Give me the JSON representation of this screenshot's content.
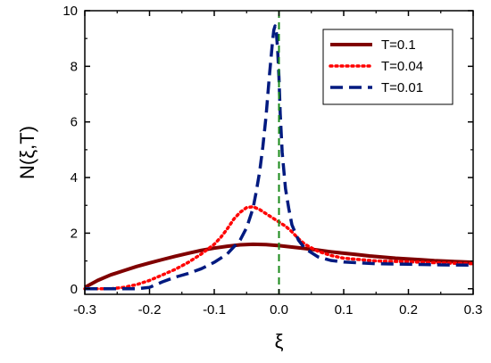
{
  "chart_data": {
    "type": "line",
    "title": "",
    "xlabel": "ξ",
    "ylabel": "N(ξ,T)",
    "xlim": [
      -0.3,
      0.3
    ],
    "ylim": [
      -0.2,
      10
    ],
    "xticks": [
      -0.3,
      -0.2,
      -0.1,
      0.0,
      0.1,
      0.2,
      0.3
    ],
    "xtick_labels": [
      "-0.3",
      "-0.2",
      "-0.1",
      "0.0",
      "0.1",
      "0.2",
      "0.3"
    ],
    "yticks": [
      0,
      2,
      4,
      6,
      8,
      10
    ],
    "ytick_labels": [
      "0",
      "2",
      "4",
      "6",
      "8",
      "10"
    ],
    "grid": false,
    "legend_position": "top-right",
    "vertical_reference_line": {
      "x": 0.0,
      "color": "#1a8a1a",
      "style": "dashed"
    },
    "series": [
      {
        "name": "T=0.1",
        "color": "#800000",
        "style": "solid",
        "x": [
          -0.3,
          -0.28,
          -0.26,
          -0.24,
          -0.22,
          -0.2,
          -0.18,
          -0.16,
          -0.14,
          -0.12,
          -0.1,
          -0.08,
          -0.06,
          -0.04,
          -0.02,
          0.0,
          0.02,
          0.04,
          0.06,
          0.08,
          0.1,
          0.12,
          0.14,
          0.16,
          0.18,
          0.2,
          0.22,
          0.24,
          0.26,
          0.28,
          0.3
        ],
        "y": [
          0.05,
          0.3,
          0.5,
          0.65,
          0.8,
          0.93,
          1.05,
          1.17,
          1.28,
          1.38,
          1.46,
          1.53,
          1.58,
          1.6,
          1.59,
          1.55,
          1.5,
          1.45,
          1.39,
          1.33,
          1.28,
          1.23,
          1.18,
          1.14,
          1.1,
          1.07,
          1.04,
          1.01,
          0.99,
          0.97,
          0.95
        ]
      },
      {
        "name": "T=0.04",
        "color": "#ff0000",
        "style": "dotted",
        "x": [
          -0.3,
          -0.26,
          -0.24,
          -0.22,
          -0.2,
          -0.18,
          -0.16,
          -0.14,
          -0.12,
          -0.1,
          -0.09,
          -0.08,
          -0.07,
          -0.06,
          -0.05,
          -0.04,
          -0.03,
          -0.02,
          -0.01,
          0.0,
          0.01,
          0.02,
          0.03,
          0.04,
          0.06,
          0.08,
          0.1,
          0.15,
          0.2,
          0.25,
          0.3
        ],
        "y": [
          0.0,
          0.0,
          0.05,
          0.15,
          0.3,
          0.5,
          0.7,
          0.95,
          1.25,
          1.6,
          1.85,
          2.15,
          2.5,
          2.75,
          2.92,
          2.95,
          2.85,
          2.7,
          2.55,
          2.4,
          2.25,
          2.05,
          1.8,
          1.6,
          1.35,
          1.2,
          1.1,
          1.0,
          0.97,
          0.93,
          0.9
        ]
      },
      {
        "name": "T=0.01",
        "color": "#001a80",
        "style": "dashed",
        "x": [
          -0.3,
          -0.26,
          -0.22,
          -0.2,
          -0.18,
          -0.16,
          -0.14,
          -0.12,
          -0.1,
          -0.08,
          -0.06,
          -0.05,
          -0.04,
          -0.035,
          -0.03,
          -0.025,
          -0.02,
          -0.015,
          -0.01,
          -0.008,
          -0.006,
          -0.004,
          -0.002,
          0.0,
          0.002,
          0.005,
          0.01,
          0.015,
          0.02,
          0.03,
          0.04,
          0.06,
          0.08,
          0.1,
          0.15,
          0.2,
          0.25,
          0.3
        ],
        "y": [
          0.0,
          0.0,
          0.0,
          0.05,
          0.25,
          0.42,
          0.55,
          0.72,
          0.95,
          1.25,
          1.75,
          2.2,
          2.9,
          3.5,
          4.2,
          5.1,
          6.2,
          7.6,
          8.9,
          9.3,
          9.45,
          9.2,
          8.6,
          7.6,
          6.3,
          4.9,
          3.6,
          2.9,
          2.3,
          1.75,
          1.45,
          1.15,
          1.02,
          0.96,
          0.9,
          0.88,
          0.86,
          0.85
        ]
      }
    ]
  }
}
